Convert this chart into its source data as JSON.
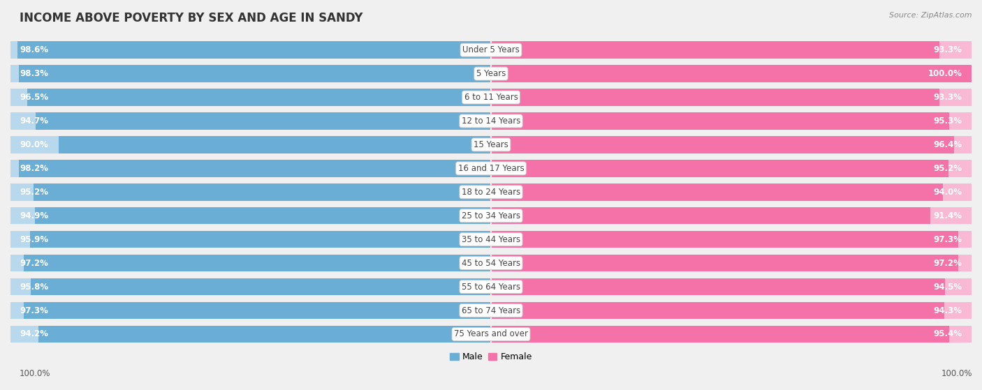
{
  "title": "INCOME ABOVE POVERTY BY SEX AND AGE IN SANDY",
  "source": "Source: ZipAtlas.com",
  "categories": [
    "Under 5 Years",
    "5 Years",
    "6 to 11 Years",
    "12 to 14 Years",
    "15 Years",
    "16 and 17 Years",
    "18 to 24 Years",
    "25 to 34 Years",
    "35 to 44 Years",
    "45 to 54 Years",
    "55 to 64 Years",
    "65 to 74 Years",
    "75 Years and over"
  ],
  "male_values": [
    98.6,
    98.3,
    96.5,
    94.7,
    90.0,
    98.2,
    95.2,
    94.9,
    95.9,
    97.2,
    95.8,
    97.3,
    94.2
  ],
  "female_values": [
    93.3,
    100.0,
    93.3,
    95.3,
    96.4,
    95.2,
    94.0,
    91.4,
    97.3,
    97.2,
    94.5,
    94.3,
    95.4
  ],
  "male_color": "#6aaed6",
  "male_color_light": "#b8d9ed",
  "female_color": "#f472a8",
  "female_color_light": "#f9b8d4",
  "bg_color": "#f0f0f0",
  "title_fontsize": 12,
  "label_fontsize": 8.5,
  "value_fontsize": 8.5,
  "source_fontsize": 8,
  "x_max": 100.0
}
